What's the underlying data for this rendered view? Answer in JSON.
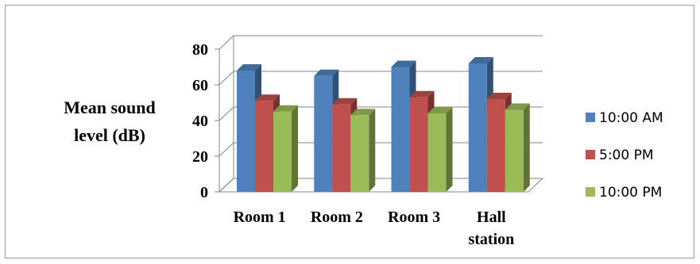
{
  "chart_data": {
    "type": "bar",
    "categories": [
      [
        "Room 1"
      ],
      [
        "Room 2"
      ],
      [
        "Room 3"
      ],
      [
        "Hall",
        "station"
      ]
    ],
    "series": [
      {
        "name": "10:00 AM",
        "values": [
          68,
          65,
          70,
          72
        ],
        "color": "#4f81bd"
      },
      {
        "name": "5:00 PM",
        "values": [
          51,
          49,
          53,
          52
        ],
        "color": "#c0504d"
      },
      {
        "name": "10:00 PM",
        "values": [
          45,
          43,
          44,
          46
        ],
        "color": "#9bbb59"
      }
    ],
    "ylabel": [
      "Mean sound",
      "level (dB)"
    ],
    "ylim": [
      0,
      80
    ],
    "yticks": [
      0,
      20,
      40,
      60,
      80
    ],
    "grid": true,
    "legend": "right",
    "three_d": true
  }
}
